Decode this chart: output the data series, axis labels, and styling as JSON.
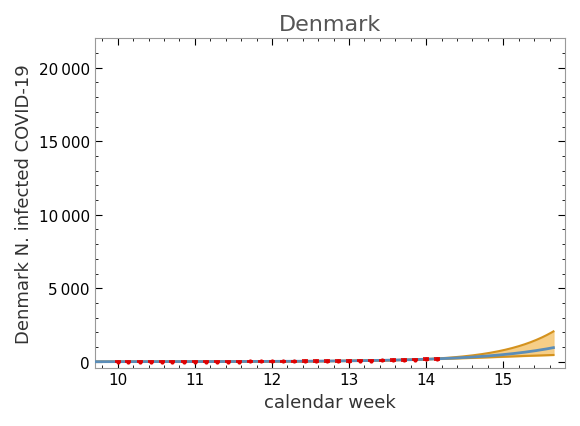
{
  "title": "Denmark",
  "xlabel": "calendar week",
  "ylabel": "Denmark N. infected COVID-19",
  "xlim": [
    9.7,
    15.8
  ],
  "ylim": [
    -400,
    22000
  ],
  "yticks": [
    0,
    5000,
    10000,
    15000,
    20000
  ],
  "xticks": [
    10,
    11,
    12,
    13,
    14,
    15
  ],
  "background_color": "#ffffff",
  "fit_color": "#5b8db8",
  "band_color": "#f5c97a",
  "band_edge_color": "#d4921e",
  "data_color": "#e00000",
  "title_fontsize": 16,
  "label_fontsize": 13,
  "tick_fontsize": 11,
  "t0": 9.5,
  "N0": 1.5,
  "r": 1.05,
  "r_upper": 1.175,
  "r_lower": 0.93,
  "t_data_end": 14.15,
  "t_fit_end": 15.65,
  "band_start": 13.9,
  "obs_weeks": [
    10.0,
    10.14,
    10.29,
    10.43,
    10.57,
    10.71,
    10.86,
    11.0,
    11.14,
    11.29,
    11.43,
    11.57,
    11.71,
    11.86,
    12.0,
    12.14,
    12.29,
    12.43,
    12.57,
    12.71,
    12.86,
    13.0,
    13.14,
    13.29,
    13.43,
    13.57,
    13.71,
    13.86,
    14.0,
    14.14
  ]
}
